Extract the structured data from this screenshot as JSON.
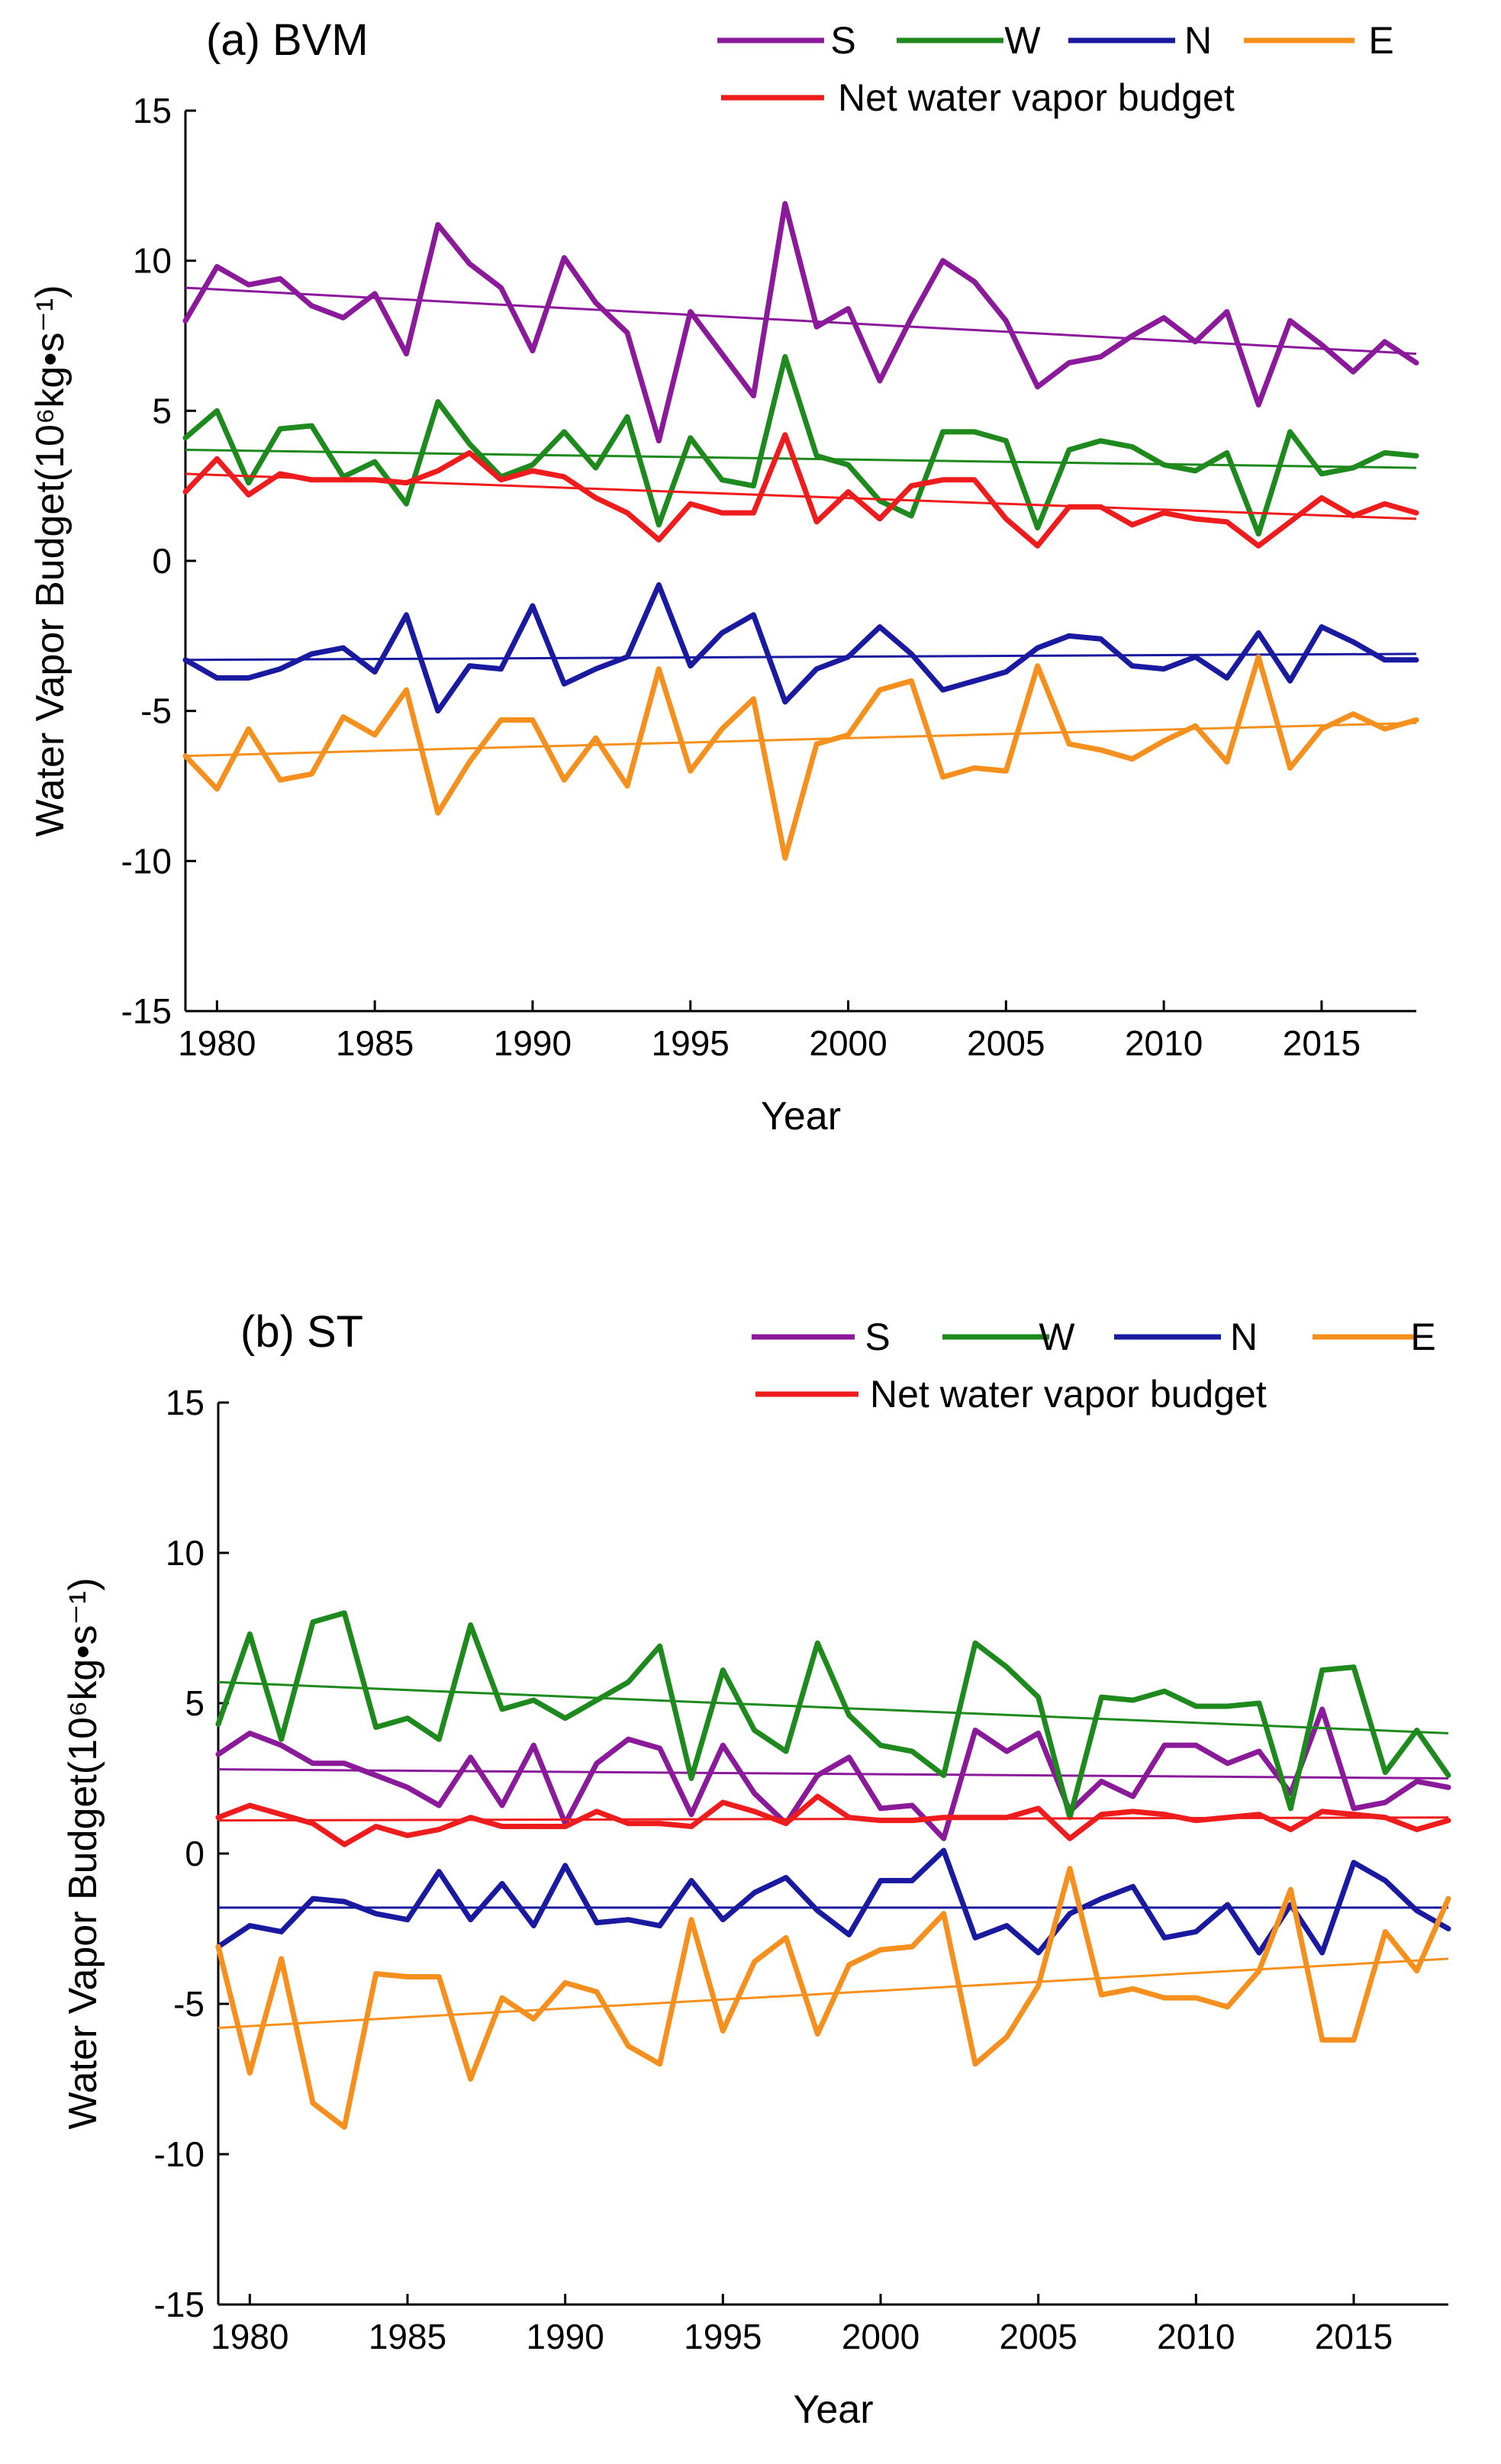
{
  "chart_data": [
    {
      "type": "line",
      "title": "(a)  BVM",
      "xlabel": "Year",
      "ylabel": "Water Vapor Budget(10⁶kg•s⁻¹)",
      "xlim": [
        1979,
        2018
      ],
      "ylim": [
        -15,
        15
      ],
      "xticks": [
        "1980",
        "1985",
        "1990",
        "1995",
        "2000",
        "2005",
        "2010",
        "2015"
      ],
      "yticks": [
        "15",
        "10",
        "5",
        "0",
        "-5",
        "-10",
        "-15"
      ],
      "x": [
        1979,
        1980,
        1981,
        1982,
        1983,
        1984,
        1985,
        1986,
        1987,
        1988,
        1989,
        1990,
        1991,
        1992,
        1993,
        1994,
        1995,
        1996,
        1997,
        1998,
        1999,
        2000,
        2001,
        2002,
        2003,
        2004,
        2005,
        2006,
        2007,
        2008,
        2009,
        2010,
        2011,
        2012,
        2013,
        2014,
        2015,
        2016,
        2017,
        2018
      ],
      "series": [
        {
          "name": "S",
          "color": "#8b1a9b",
          "values": [
            8.0,
            9.8,
            9.2,
            9.4,
            8.5,
            8.1,
            8.9,
            6.9,
            11.2,
            9.9,
            9.1,
            7.0,
            10.1,
            8.6,
            7.6,
            4.0,
            8.3,
            6.9,
            5.5,
            11.9,
            7.8,
            8.4,
            6.0,
            8.1,
            10.0,
            9.3,
            8.0,
            5.8,
            6.6,
            6.8,
            7.5,
            8.1,
            7.3,
            8.3,
            5.2,
            8.0,
            7.2,
            6.3,
            7.3,
            6.6
          ],
          "trend": [
            9.1,
            6.9
          ]
        },
        {
          "name": "W",
          "color": "#1e8a1e",
          "values": [
            4.1,
            5.0,
            2.6,
            4.4,
            4.5,
            2.8,
            3.3,
            1.9,
            5.3,
            3.9,
            2.8,
            3.2,
            4.3,
            3.1,
            4.8,
            1.2,
            4.1,
            2.7,
            2.5,
            6.8,
            3.5,
            3.2,
            2.0,
            1.5,
            4.3,
            4.3,
            4.0,
            1.1,
            3.7,
            4.0,
            3.8,
            3.2,
            3.0,
            3.6,
            0.9,
            4.3,
            2.9,
            3.1,
            3.6,
            3.5
          ],
          "trend": [
            3.7,
            3.1
          ]
        },
        {
          "name": "N",
          "color": "#1a1aa0",
          "values": [
            -3.3,
            -3.9,
            -3.9,
            -3.6,
            -3.1,
            -2.9,
            -3.7,
            -1.8,
            -5.0,
            -3.5,
            -3.6,
            -1.5,
            -4.1,
            -3.6,
            -3.2,
            -0.8,
            -3.5,
            -2.4,
            -1.8,
            -4.7,
            -3.6,
            -3.2,
            -2.2,
            -3.1,
            -4.3,
            -4.0,
            -3.7,
            -2.9,
            -2.5,
            -2.6,
            -3.5,
            -3.6,
            -3.2,
            -3.9,
            -2.4,
            -4.0,
            -2.2,
            -2.7,
            -3.3,
            -3.3
          ],
          "trend": [
            -3.3,
            -3.1
          ]
        },
        {
          "name": "E",
          "color": "#f5901e",
          "values": [
            -6.5,
            -7.6,
            -5.6,
            -7.3,
            -7.1,
            -5.2,
            -5.8,
            -4.3,
            -8.4,
            -6.7,
            -5.3,
            -5.3,
            -7.3,
            -5.9,
            -7.5,
            -3.6,
            -7.0,
            -5.6,
            -4.6,
            -9.9,
            -6.1,
            -5.8,
            -4.3,
            -4.0,
            -7.2,
            -6.9,
            -7.0,
            -3.5,
            -6.1,
            -6.3,
            -6.6,
            -6.0,
            -5.5,
            -6.7,
            -3.2,
            -6.9,
            -5.6,
            -5.1,
            -5.6,
            -5.3
          ],
          "trend": [
            -6.5,
            -5.4
          ]
        },
        {
          "name": "Net water vapor budget",
          "color": "#ee1c1c",
          "values": [
            2.3,
            3.4,
            2.2,
            2.9,
            2.7,
            2.7,
            2.7,
            2.6,
            3.0,
            3.6,
            2.7,
            3.0,
            2.8,
            2.1,
            1.6,
            0.7,
            1.9,
            1.6,
            1.6,
            4.2,
            1.3,
            2.3,
            1.4,
            2.5,
            2.7,
            2.7,
            1.4,
            0.5,
            1.8,
            1.8,
            1.2,
            1.6,
            1.4,
            1.3,
            0.5,
            1.3,
            2.1,
            1.5,
            1.9,
            1.6
          ],
          "trend": [
            2.9,
            1.4
          ]
        }
      ]
    },
    {
      "type": "line",
      "title": "(b)  ST",
      "xlabel": "Year",
      "ylabel": "Water Vapor Budget(10⁶kg•s⁻¹)",
      "xlim": [
        1979,
        2018
      ],
      "ylim": [
        -15,
        15
      ],
      "xticks": [
        "1980",
        "1985",
        "1990",
        "1995",
        "2000",
        "2005",
        "2010",
        "2015"
      ],
      "yticks": [
        "15",
        "10",
        "5",
        "0",
        "-5",
        "-10",
        "-15"
      ],
      "x": [
        1979,
        1980,
        1981,
        1982,
        1983,
        1984,
        1985,
        1986,
        1987,
        1988,
        1989,
        1990,
        1991,
        1992,
        1993,
        1994,
        1995,
        1996,
        1997,
        1998,
        1999,
        2000,
        2001,
        2002,
        2003,
        2004,
        2005,
        2006,
        2007,
        2008,
        2009,
        2010,
        2011,
        2012,
        2013,
        2014,
        2015,
        2016,
        2017,
        2018
      ],
      "series": [
        {
          "name": "S",
          "color": "#8b1a9b",
          "values": [
            3.3,
            4.0,
            3.6,
            3.0,
            3.0,
            2.6,
            2.2,
            1.6,
            3.2,
            1.6,
            3.6,
            1.0,
            3.0,
            3.8,
            3.5,
            1.3,
            3.6,
            2.0,
            1.0,
            2.6,
            3.2,
            1.5,
            1.6,
            0.5,
            4.1,
            3.4,
            4.0,
            1.4,
            2.4,
            1.9,
            3.6,
            3.6,
            3.0,
            3.4,
            2.0,
            4.8,
            1.5,
            1.7,
            2.4,
            2.2
          ],
          "trend": [
            2.8,
            2.5
          ]
        },
        {
          "name": "W",
          "color": "#1e8a1e",
          "values": [
            4.3,
            7.3,
            3.8,
            7.7,
            8.0,
            4.2,
            4.5,
            3.8,
            7.6,
            4.8,
            5.1,
            4.5,
            5.1,
            5.7,
            6.9,
            2.5,
            6.1,
            4.1,
            3.4,
            7.0,
            4.6,
            3.6,
            3.4,
            2.6,
            7.0,
            6.2,
            5.2,
            1.2,
            5.2,
            5.1,
            5.4,
            4.9,
            4.9,
            5.0,
            1.5,
            6.1,
            6.2,
            2.7,
            4.1,
            2.6
          ],
          "trend": [
            5.7,
            4.0
          ]
        },
        {
          "name": "N",
          "color": "#1a1aa0",
          "values": [
            -3.1,
            -2.4,
            -2.6,
            -1.5,
            -1.6,
            -2.0,
            -2.2,
            -0.6,
            -2.2,
            -1.0,
            -2.4,
            -0.4,
            -2.3,
            -2.2,
            -2.4,
            -0.9,
            -2.2,
            -1.3,
            -0.8,
            -1.9,
            -2.7,
            -0.9,
            -0.9,
            0.1,
            -2.8,
            -2.4,
            -3.3,
            -2.0,
            -1.5,
            -1.1,
            -2.8,
            -2.6,
            -1.7,
            -3.3,
            -1.7,
            -3.3,
            -0.3,
            -0.9,
            -1.9,
            -2.5
          ],
          "trend": [
            -1.8,
            -1.8
          ]
        },
        {
          "name": "E",
          "color": "#f5901e",
          "values": [
            -3.1,
            -7.3,
            -3.5,
            -8.3,
            -9.1,
            -4.0,
            -4.1,
            -4.1,
            -7.5,
            -4.8,
            -5.5,
            -4.3,
            -4.6,
            -6.4,
            -7.0,
            -2.2,
            -5.9,
            -3.6,
            -2.8,
            -6.0,
            -3.7,
            -3.2,
            -3.1,
            -2.0,
            -7.0,
            -6.1,
            -4.4,
            -0.5,
            -4.7,
            -4.5,
            -4.8,
            -4.8,
            -5.1,
            -3.9,
            -1.2,
            -6.2,
            -6.2,
            -2.6,
            -3.9,
            -1.5
          ],
          "trend": [
            -5.8,
            -3.5
          ]
        },
        {
          "name": "Net water vapor budget",
          "color": "#ee1c1c",
          "values": [
            1.2,
            1.6,
            1.3,
            1.0,
            0.3,
            0.9,
            0.6,
            0.8,
            1.2,
            0.9,
            0.9,
            0.9,
            1.4,
            1.0,
            1.0,
            0.9,
            1.7,
            1.4,
            1.0,
            1.9,
            1.2,
            1.1,
            1.1,
            1.2,
            1.2,
            1.2,
            1.5,
            0.5,
            1.3,
            1.4,
            1.3,
            1.1,
            1.2,
            1.3,
            0.8,
            1.4,
            1.3,
            1.2,
            0.8,
            1.1
          ],
          "trend": [
            1.1,
            1.2
          ]
        }
      ]
    }
  ]
}
